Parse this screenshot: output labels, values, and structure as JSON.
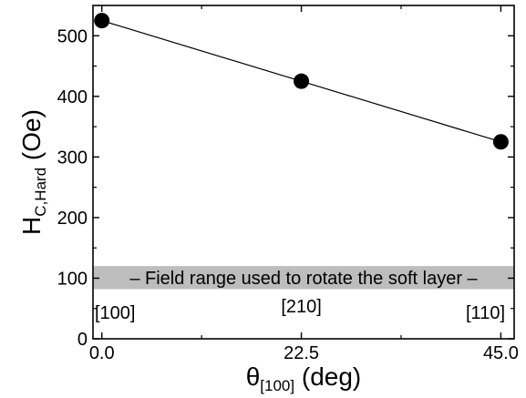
{
  "chart_data": {
    "type": "scatter",
    "xlabel": {
      "main": "θ",
      "sub": "[100]",
      "unit": " (deg)"
    },
    "ylabel": {
      "main": "H",
      "sub": "C,Hard",
      "unit": " (Oe)"
    },
    "xlim": [
      -1.0,
      46.5
    ],
    "ylim": [
      0,
      550
    ],
    "xticks": [
      0.0,
      22.5,
      45.0
    ],
    "xtick_labels": [
      "0.0",
      "22.5",
      "45.0"
    ],
    "yticks": [
      0,
      100,
      200,
      300,
      400,
      500
    ],
    "ytick_labels": [
      "0",
      "100",
      "200",
      "300",
      "400",
      "500"
    ],
    "series": [
      {
        "x": [
          0.0,
          22.5,
          45.0
        ],
        "y": [
          525,
          425,
          325
        ],
        "marker": "filled-circle",
        "line": "solid",
        "color": "#000000"
      }
    ],
    "band": {
      "y_range": [
        82,
        120
      ],
      "color": "#bdbdbd",
      "label": "Field range used to rotate the soft layer"
    },
    "direction_labels": [
      {
        "x": 0.0,
        "text": "[100]"
      },
      {
        "x": 22.5,
        "text": "[210]"
      },
      {
        "x": 45.0,
        "text": "[110]"
      }
    ],
    "grid": false
  }
}
